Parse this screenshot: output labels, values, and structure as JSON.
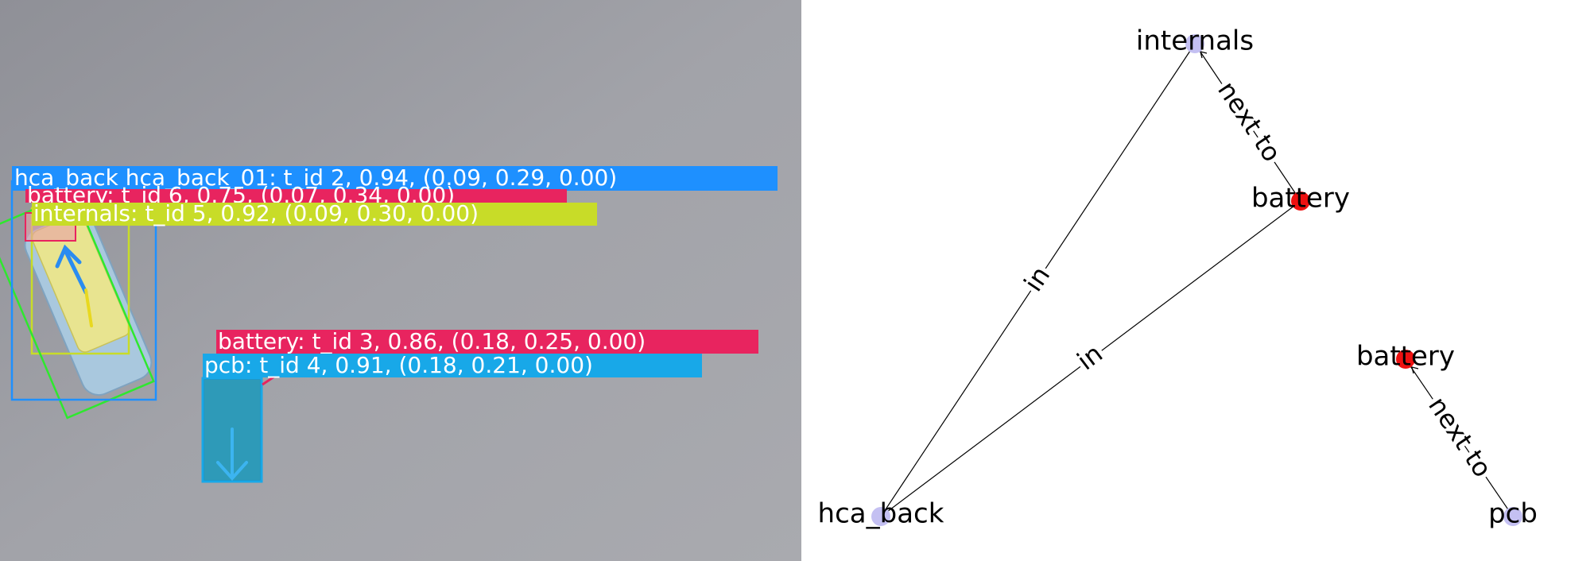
{
  "camera_view": {
    "detections": [
      {
        "id": "hca_back",
        "label": "hca_back hca_back_01: t_id 2, 0.94, (0.09, 0.29, 0.00)",
        "color": "#1e90ff"
      },
      {
        "id": "battery_6",
        "label": "battery: t_id 6, 0.75, (0.07, 0.34, 0.00)",
        "color": "#e8245f"
      },
      {
        "id": "internals",
        "label": "internals: t_id 5, 0.92, (0.09, 0.30, 0.00)",
        "color": "#c8dc28"
      },
      {
        "id": "battery_3",
        "label": "battery: t_id 3, 0.86, (0.18, 0.25, 0.00)",
        "color": "#e8245f"
      },
      {
        "id": "pcb",
        "label": "pcb: t_id 4, 0.91, (0.18, 0.21, 0.00)",
        "color": "#18a8e8"
      }
    ],
    "colors": {
      "table": "#9a9ba2",
      "obb": "#2ee82e"
    }
  },
  "scene_graph": {
    "nodes": [
      {
        "id": "internals",
        "label": "internals",
        "color": "#c4c0f2"
      },
      {
        "id": "battery_a",
        "label": "battery",
        "color": "#ee1111"
      },
      {
        "id": "hca_back",
        "label": "hca_back",
        "color": "#c4c0f2"
      },
      {
        "id": "battery_b",
        "label": "battery",
        "color": "#ee1111"
      },
      {
        "id": "pcb",
        "label": "pcb",
        "color": "#c4c0f2"
      }
    ],
    "edges": [
      {
        "from": "battery_a",
        "to": "internals",
        "label": "next to"
      },
      {
        "from": "hca_back",
        "to": "internals",
        "label": "in"
      },
      {
        "from": "hca_back",
        "to": "battery_a",
        "label": "in"
      },
      {
        "from": "pcb",
        "to": "battery_b",
        "label": "next to"
      }
    ]
  }
}
